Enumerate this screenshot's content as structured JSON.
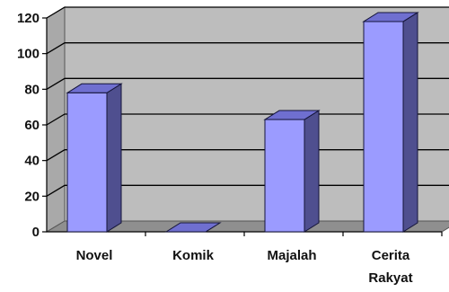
{
  "chart_data": {
    "type": "bar",
    "style": "3d-column",
    "categories": [
      "Novel",
      "Komik",
      "Majalah",
      "Cerita Rakyat"
    ],
    "category_lines": [
      [
        "Novel"
      ],
      [
        "Komik"
      ],
      [
        "Majalah"
      ],
      [
        "Cerita",
        "Rakyat"
      ]
    ],
    "values": [
      78,
      0,
      63,
      118
    ],
    "yticks": [
      0,
      20,
      40,
      60,
      80,
      100,
      120
    ],
    "ylim": [
      0,
      120
    ],
    "grid": true,
    "legend": "none",
    "colors": {
      "bar_front": "#9b9bff",
      "bar_side": "#4f4f8f",
      "bar_top": "#6f6fd0",
      "bar_outline": "#15153a",
      "wall": "#bdbdbd",
      "floor": "#8f8f8f",
      "grid_line": "#000000"
    }
  }
}
